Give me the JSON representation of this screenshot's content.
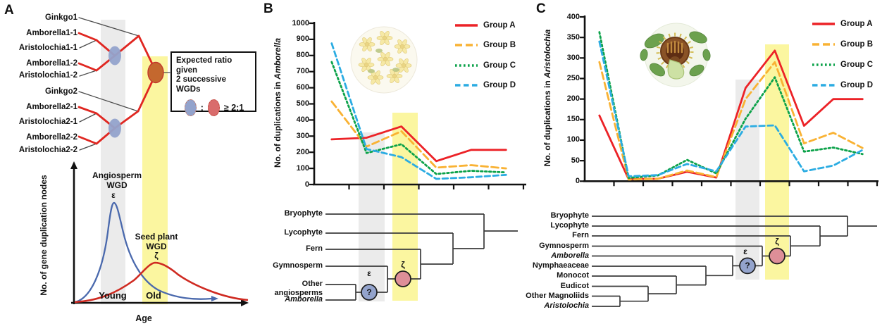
{
  "panelA": {
    "label": "A",
    "species": [
      "Ginkgo1",
      "Amborella1-1",
      "Aristolochia1-1",
      "Amborella1-2",
      "Aristolochia1-2",
      "Ginkgo2",
      "Amborella2-1",
      "Aristolochia2-1",
      "Amborella2-2",
      "Aristolochia2-2"
    ],
    "ratio_box": {
      "line1": "Expected ratio given",
      "line2": "2 successive WGDs",
      "colon": ":",
      "value": "≥ 2:1"
    },
    "curve_plot": {
      "ylabel": "No. of gene duplication nodes",
      "xlabel": "Age",
      "young_label": "Young",
      "old_label": "Old",
      "angiosperm_wgd_line1": "Angiosperm",
      "angiosperm_wgd_line2": "WGD",
      "epsilon": "ε",
      "seed_wgd_line1": "Seed plant",
      "seed_wgd_line2": "WGD",
      "zeta": "ζ"
    },
    "colors": {
      "blue_curve": "#4A69AD",
      "red_curve": "#CF2A21",
      "blue_node": "#93A3CC",
      "orange_node": "#C4682E",
      "highlight_gray": "#EBEBEB",
      "highlight_yellow": "#FBF6A0"
    }
  },
  "panelB": {
    "label": "B",
    "ylabel_prefix": "No. of duplications in ",
    "ylabel_species": "Amborella",
    "icon": "amborella-flower-cluster-illustration",
    "tree": {
      "taxa": [
        "Bryophyte",
        "Lycophyte",
        "Fern",
        "Gymnosperm",
        "Other angiosperms",
        "Amborella"
      ],
      "epsilon": "ε",
      "zeta": "ζ",
      "question_mark": "?"
    }
  },
  "panelC": {
    "label": "C",
    "ylabel_prefix": "No. of duplications in ",
    "ylabel_species": "Aristolochia",
    "icon": "aristolochia-flower-illustration",
    "tree": {
      "taxa": [
        "Bryophyte",
        "Lycophyte",
        "Fern",
        "Gymnosperm",
        "Amborella",
        "Nymphaeaceae",
        "Monocot",
        "Eudicot",
        "Other Magnoliids",
        "Aristolochia"
      ],
      "epsilon": "ε",
      "zeta": "ζ",
      "question_mark": "?"
    }
  },
  "chart_data": [
    {
      "panel": "B",
      "type": "line",
      "ylabel": "No. of duplications in Amborella",
      "xlabel": "",
      "x_tick_labels": "none (unlabeled phylogenetic divergence nodes)",
      "ylim": [
        0,
        1000
      ],
      "yticks": [
        0,
        100,
        200,
        300,
        400,
        500,
        600,
        700,
        800,
        900,
        1000
      ],
      "categories": [
        "node1",
        "node2",
        "node3",
        "node4",
        "node5",
        "node6"
      ],
      "series": [
        {
          "name": "Group A",
          "color": "#EC2227",
          "line_style": "solid",
          "values": [
            280,
            290,
            360,
            145,
            215,
            215
          ]
        },
        {
          "name": "Group B",
          "color": "#F9B233",
          "line_style": "long-dash",
          "values": [
            515,
            235,
            330,
            105,
            120,
            100
          ]
        },
        {
          "name": "Group C",
          "color": "#0CA24A",
          "line_style": "dotted",
          "values": [
            760,
            195,
            250,
            65,
            85,
            75
          ]
        },
        {
          "name": "Group D",
          "color": "#2BACE2",
          "line_style": "short-dash",
          "values": [
            875,
            220,
            170,
            35,
            45,
            60
          ]
        }
      ],
      "legend_position": "top-right",
      "grid": false,
      "highlights": [
        {
          "name": "epsilon-WGD-band",
          "color": "#EBEBEB",
          "at": "node2-node3 boundary"
        },
        {
          "name": "zeta-WGD-band",
          "color": "#FBF6A0",
          "at": "node3"
        }
      ]
    },
    {
      "panel": "C",
      "type": "line",
      "ylabel": "No. of duplications in Aristolochia",
      "xlabel": "",
      "x_tick_labels": "none (unlabeled phylogenetic divergence nodes)",
      "ylim": [
        0,
        400
      ],
      "yticks": [
        0,
        50,
        100,
        150,
        200,
        250,
        300,
        350,
        400
      ],
      "categories": [
        "node1",
        "node2",
        "node3",
        "node4",
        "node5",
        "node6",
        "node7",
        "node8",
        "node9",
        "node10"
      ],
      "series": [
        {
          "name": "Group A",
          "color": "#EC2227",
          "line_style": "solid",
          "values": [
            160,
            5,
            6,
            23,
            9,
            227,
            318,
            135,
            200,
            200
          ]
        },
        {
          "name": "Group B",
          "color": "#F9B233",
          "line_style": "long-dash",
          "values": [
            290,
            4,
            6,
            26,
            10,
            200,
            290,
            92,
            118,
            81
          ]
        },
        {
          "name": "Group C",
          "color": "#0CA24A",
          "line_style": "dotted",
          "values": [
            363,
            8,
            14,
            52,
            19,
            152,
            253,
            72,
            82,
            66
          ]
        },
        {
          "name": "Group D",
          "color": "#2BACE2",
          "line_style": "short-dash",
          "values": [
            340,
            12,
            15,
            42,
            24,
            133,
            136,
            24,
            38,
            76
          ]
        }
      ],
      "legend_position": "top-right",
      "grid": false,
      "highlights": [
        {
          "name": "epsilon-WGD-band",
          "color": "#EBEBEB",
          "at": "node6"
        },
        {
          "name": "zeta-WGD-band",
          "color": "#FBF6A0",
          "at": "node7"
        }
      ]
    }
  ]
}
